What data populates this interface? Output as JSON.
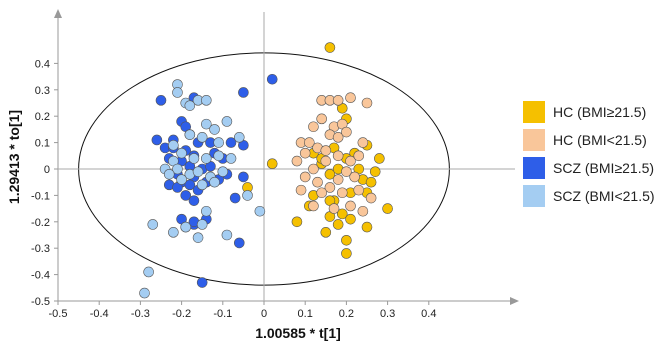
{
  "chart_data": {
    "type": "scatter",
    "xlabel": "1.00585 * t[1]",
    "ylabel": "1.29413 * to[1]",
    "xlim": [
      -0.5,
      0.5
    ],
    "ylim": [
      -0.5,
      0.5
    ],
    "xticks": [
      "-0.5",
      "-0.4",
      "-0.3",
      "-0.2",
      "-0.1",
      "0",
      "0.1",
      "0.2",
      "0.3",
      "0.4"
    ],
    "yticks": [
      "0.4",
      "0.3",
      "0.2",
      "0.1",
      "0",
      "-0.1",
      "-0.2",
      "-0.3",
      "-0.4",
      "-0.5"
    ],
    "ellipse": {
      "cx": 0.0,
      "cy": 0.0,
      "rx": 0.45,
      "ry": 0.44
    },
    "legend_position": "right",
    "series": [
      {
        "name": "HC (BMI≥21.5)",
        "color": "#f5c000",
        "points": [
          [
            0.16,
            0.46
          ],
          [
            0.19,
            0.23
          ],
          [
            0.2,
            0.19
          ],
          [
            0.25,
            0.09
          ],
          [
            0.28,
            0.04
          ],
          [
            0.27,
            -0.01
          ],
          [
            0.23,
            0.0
          ],
          [
            0.24,
            -0.04
          ],
          [
            0.26,
            -0.05
          ],
          [
            0.25,
            -0.09
          ],
          [
            0.21,
            -0.09
          ],
          [
            0.17,
            -0.12
          ],
          [
            0.12,
            -0.1
          ],
          [
            0.11,
            -0.14
          ],
          [
            0.16,
            -0.12
          ],
          [
            0.19,
            -0.17
          ],
          [
            0.21,
            -0.19
          ],
          [
            0.16,
            -0.18
          ],
          [
            0.15,
            -0.24
          ],
          [
            0.18,
            -0.21
          ],
          [
            0.2,
            -0.27
          ],
          [
            0.2,
            -0.32
          ],
          [
            0.25,
            -0.22
          ],
          [
            0.3,
            -0.15
          ],
          [
            0.08,
            -0.2
          ],
          [
            0.02,
            0.02
          ],
          [
            -0.04,
            -0.07
          ],
          [
            0.14,
            0.02
          ],
          [
            0.16,
            -0.02
          ],
          [
            0.18,
            0.0
          ],
          [
            0.12,
            0.06
          ],
          [
            0.14,
            0.04
          ],
          [
            0.17,
            0.08
          ],
          [
            0.2,
            0.04
          ],
          [
            0.22,
            0.06
          ]
        ]
      },
      {
        "name": "HC (BMI<21.5)",
        "color": "#f9c69a",
        "points": [
          [
            0.14,
            0.26
          ],
          [
            0.16,
            0.26
          ],
          [
            0.18,
            0.26
          ],
          [
            0.21,
            0.27
          ],
          [
            0.25,
            0.25
          ],
          [
            0.12,
            0.16
          ],
          [
            0.14,
            0.19
          ],
          [
            0.17,
            0.16
          ],
          [
            0.19,
            0.17
          ],
          [
            0.09,
            0.1
          ],
          [
            0.11,
            0.1
          ],
          [
            0.16,
            0.13
          ],
          [
            0.18,
            0.12
          ],
          [
            0.2,
            0.14
          ],
          [
            0.24,
            0.1
          ],
          [
            0.1,
            0.06
          ],
          [
            0.13,
            0.08
          ],
          [
            0.15,
            0.07
          ],
          [
            0.18,
            0.05
          ],
          [
            0.21,
            0.03
          ],
          [
            0.23,
            0.05
          ],
          [
            0.08,
            0.03
          ],
          [
            0.12,
            0.0
          ],
          [
            0.15,
            0.03
          ],
          [
            0.2,
            -0.01
          ],
          [
            0.22,
            -0.03
          ],
          [
            0.1,
            -0.03
          ],
          [
            0.13,
            -0.05
          ],
          [
            0.16,
            -0.07
          ],
          [
            0.18,
            -0.04
          ],
          [
            0.23,
            -0.08
          ],
          [
            0.26,
            -0.11
          ],
          [
            0.09,
            -0.08
          ],
          [
            0.14,
            -0.09
          ],
          [
            0.19,
            -0.09
          ],
          [
            0.21,
            -0.14
          ],
          [
            0.12,
            -0.14
          ],
          [
            0.24,
            -0.16
          ],
          [
            0.17,
            -0.15
          ]
        ]
      },
      {
        "name": "SCZ (BMI≥21.5)",
        "color": "#2e5ee8",
        "points": [
          [
            -0.05,
            0.29
          ],
          [
            0.02,
            0.34
          ],
          [
            -0.25,
            0.26
          ],
          [
            -0.17,
            0.27
          ],
          [
            -0.2,
            0.18
          ],
          [
            -0.22,
            0.11
          ],
          [
            -0.26,
            0.11
          ],
          [
            -0.19,
            0.16
          ],
          [
            -0.18,
            0.13
          ],
          [
            -0.16,
            0.1
          ],
          [
            -0.13,
            0.1
          ],
          [
            -0.08,
            0.1
          ],
          [
            -0.05,
            0.09
          ],
          [
            -0.24,
            0.08
          ],
          [
            -0.22,
            0.08
          ],
          [
            -0.19,
            0.07
          ],
          [
            -0.17,
            0.05
          ],
          [
            -0.12,
            0.06
          ],
          [
            -0.1,
            0.04
          ],
          [
            -0.23,
            0.04
          ],
          [
            -0.2,
            0.03
          ],
          [
            -0.18,
            0.01
          ],
          [
            -0.15,
            0.0
          ],
          [
            -0.13,
            0.01
          ],
          [
            -0.09,
            -0.02
          ],
          [
            -0.05,
            -0.03
          ],
          [
            -0.21,
            -0.02
          ],
          [
            -0.17,
            -0.03
          ],
          [
            -0.14,
            -0.05
          ],
          [
            -0.11,
            -0.04
          ],
          [
            -0.2,
            -0.05
          ],
          [
            -0.23,
            -0.06
          ],
          [
            -0.18,
            -0.06
          ],
          [
            -0.16,
            -0.08
          ],
          [
            -0.07,
            -0.11
          ],
          [
            -0.21,
            -0.07
          ],
          [
            -0.19,
            -0.1
          ],
          [
            -0.17,
            -0.12
          ],
          [
            -0.2,
            -0.19
          ],
          [
            -0.19,
            -0.22
          ],
          [
            -0.17,
            -0.21
          ],
          [
            -0.14,
            -0.19
          ],
          [
            -0.06,
            -0.28
          ],
          [
            -0.15,
            -0.43
          ],
          [
            -0.17,
            -0.2
          ]
        ]
      },
      {
        "name": "SCZ (BMI<21.5)",
        "color": "#a4cdf2",
        "points": [
          [
            -0.21,
            0.32
          ],
          [
            -0.21,
            0.29
          ],
          [
            -0.19,
            0.25
          ],
          [
            -0.16,
            0.26
          ],
          [
            -0.14,
            0.26
          ],
          [
            -0.18,
            0.24
          ],
          [
            -0.14,
            0.17
          ],
          [
            -0.09,
            0.18
          ],
          [
            -0.12,
            0.15
          ],
          [
            -0.18,
            0.13
          ],
          [
            -0.15,
            0.12
          ],
          [
            -0.22,
            0.09
          ],
          [
            -0.06,
            0.12
          ],
          [
            -0.11,
            0.1
          ],
          [
            -0.11,
            0.05
          ],
          [
            -0.08,
            0.04
          ],
          [
            -0.2,
            0.06
          ],
          [
            -0.17,
            0.04
          ],
          [
            -0.14,
            0.04
          ],
          [
            -0.22,
            0.03
          ],
          [
            -0.24,
            0.0
          ],
          [
            -0.21,
            0.0
          ],
          [
            -0.18,
            -0.02
          ],
          [
            -0.16,
            -0.01
          ],
          [
            -0.13,
            -0.03
          ],
          [
            -0.1,
            -0.01
          ],
          [
            -0.2,
            -0.04
          ],
          [
            -0.15,
            -0.06
          ],
          [
            -0.12,
            -0.05
          ],
          [
            -0.23,
            -0.02
          ],
          [
            -0.04,
            -0.1
          ],
          [
            -0.01,
            -0.16
          ],
          [
            -0.14,
            -0.16
          ],
          [
            -0.15,
            -0.21
          ],
          [
            -0.22,
            -0.24
          ],
          [
            -0.16,
            -0.26
          ],
          [
            -0.27,
            -0.21
          ],
          [
            -0.19,
            -0.22
          ],
          [
            -0.09,
            -0.25
          ],
          [
            -0.28,
            -0.39
          ],
          [
            -0.29,
            -0.47
          ]
        ]
      }
    ]
  }
}
